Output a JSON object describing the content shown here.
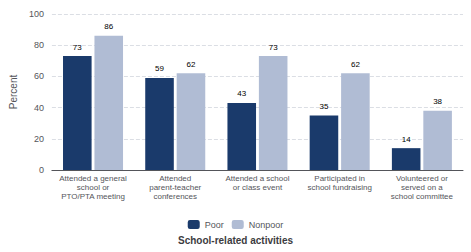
{
  "chart_data": {
    "type": "bar",
    "categories": [
      "Attended a general\nschool or\nPTO/PTA meeting",
      "Attended\nparent-teacher\nconferences",
      "Attended a school\nor class event",
      "Participated in\nschool fundraising",
      "Volunteered or\nserved on a\nschool committee"
    ],
    "series": [
      {
        "name": "Poor",
        "color": "#1a3a6b",
        "values": [
          73,
          59,
          43,
          35,
          14
        ]
      },
      {
        "name": "Nonpoor",
        "color": "#b0bcd4",
        "values": [
          86,
          62,
          73,
          62,
          38
        ]
      }
    ],
    "ylabel": "Percent",
    "xlabel": "School-related activities",
    "ylim": [
      0,
      100
    ],
    "yticks": [
      0,
      20,
      40,
      60,
      80,
      100
    ],
    "grid": true,
    "data_labels": true,
    "legend": "bottom"
  }
}
